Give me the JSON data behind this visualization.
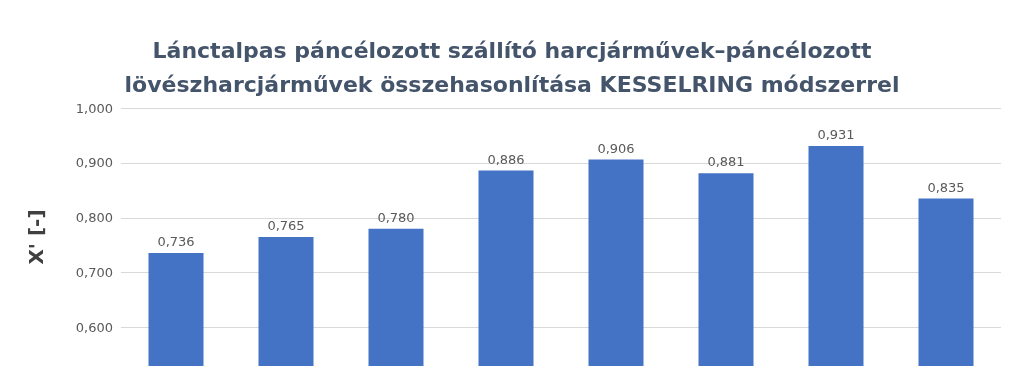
{
  "chart_data": {
    "type": "bar",
    "title": "Lánctalpas páncélozott szállító harcjárművek–páncélozott\nlövészharcjárművek összehasonlítása KESSELRING módszerrel",
    "ylabel": "X' [-]",
    "categories": [
      null,
      null,
      null,
      null,
      null,
      null,
      null,
      null
    ],
    "values": [
      0.736,
      0.765,
      0.78,
      0.886,
      0.906,
      0.881,
      0.931,
      0.835
    ],
    "value_labels": [
      "0,736",
      "0,765",
      "0,780",
      "0,886",
      "0,906",
      "0,881",
      "0,931",
      "0,835"
    ],
    "color": "#4472c4",
    "ylim": [
      0.53,
      1
    ],
    "yticks": [
      {
        "value": 0.6,
        "label": "0,600"
      },
      {
        "value": 0.7,
        "label": "0,700"
      },
      {
        "value": 0.8,
        "label": "0,800"
      },
      {
        "value": 0.9,
        "label": "0,900"
      },
      {
        "value": 1,
        "label": "1,000"
      }
    ],
    "grid": true
  }
}
